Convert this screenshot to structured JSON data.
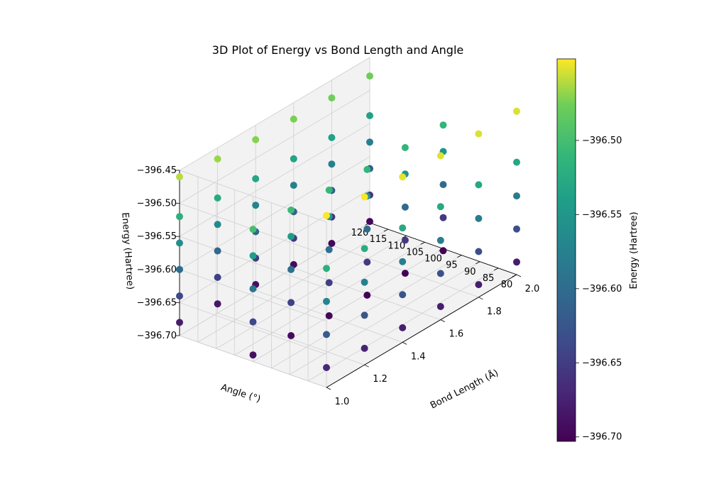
{
  "chart_data": {
    "type": "scatter",
    "projection": "3d",
    "title": "3D Plot of Energy vs Bond Length and Angle",
    "xlabel": "Bond Length (Å)",
    "ylabel": "Angle (°)",
    "zlabel": "Energy (Hartree)",
    "colorbar_label": "Energy (Hartree)",
    "colormap": "viridis",
    "xlim": [
      1.0,
      2.0
    ],
    "ylim": [
      80,
      120
    ],
    "zlim": [
      -396.7,
      -396.45
    ],
    "x_ticks": [
      "1.0",
      "1.2",
      "1.4",
      "1.6",
      "1.8",
      "2.0"
    ],
    "y_ticks": [
      "120",
      "115",
      "110",
      "105",
      "100",
      "95",
      "90",
      "85",
      "80"
    ],
    "z_ticks": [
      "−396.70",
      "−396.65",
      "−396.60",
      "−396.55",
      "−396.50",
      "−396.45"
    ],
    "colorbar_ticks": [
      "−396.70",
      "−396.65",
      "−396.60",
      "−396.55",
      "−396.50"
    ],
    "colorbar_range": [
      -396.703,
      -396.445
    ],
    "grid": true,
    "colors": {
      "viridis_low": "#440154",
      "viridis_mid": "#21918c",
      "viridis_high": "#fde725",
      "pane": "#f2f2f2",
      "grid": "#d0d0d0"
    },
    "series": [
      {
        "angle": 120,
        "bond_length": [
          1.0,
          1.2,
          1.4,
          1.6,
          1.8,
          2.0
        ],
        "energy": [
          -396.68,
          -396.686,
          -396.691,
          -396.695,
          -396.697,
          -396.698
        ]
      },
      {
        "angle": 120,
        "bond_length": [
          1.0,
          1.2,
          1.4,
          1.6,
          1.8,
          2.0
        ],
        "energy": [
          -396.64,
          -396.646,
          -396.651,
          -396.655,
          -396.657,
          -396.658
        ]
      },
      {
        "angle": 120,
        "bond_length": [
          1.0,
          1.2,
          1.4,
          1.6,
          1.8,
          2.0
        ],
        "energy": [
          -396.6,
          -396.606,
          -396.611,
          -396.615,
          -396.617,
          -396.618
        ]
      },
      {
        "angle": 120,
        "bond_length": [
          1.0,
          1.2,
          1.4,
          1.6,
          1.8,
          2.0
        ],
        "energy": [
          -396.56,
          -396.566,
          -396.571,
          -396.575,
          -396.577,
          -396.578
        ]
      },
      {
        "angle": 120,
        "bond_length": [
          1.0,
          1.2,
          1.4,
          1.6,
          1.8,
          2.0
        ],
        "energy": [
          -396.52,
          -396.526,
          -396.531,
          -396.535,
          -396.537,
          -396.538
        ]
      },
      {
        "angle": 120,
        "bond_length": [
          1.0,
          1.2,
          1.4,
          1.6,
          1.8,
          2.0
        ],
        "energy": [
          -396.46,
          -396.467,
          -396.472,
          -396.475,
          -396.477,
          -396.478
        ]
      },
      {
        "angle": 100,
        "bond_length": [
          1.0,
          1.2,
          1.4,
          1.6,
          1.8,
          2.0
        ],
        "energy": [
          -396.69,
          -396.695,
          -396.699,
          -396.702,
          -396.703,
          -396.703
        ]
      },
      {
        "angle": 100,
        "bond_length": [
          1.0,
          1.2,
          1.4,
          1.6,
          1.8,
          2.0
        ],
        "energy": [
          -396.64,
          -396.645,
          -396.649,
          -396.652,
          -396.653,
          -396.653
        ]
      },
      {
        "angle": 100,
        "bond_length": [
          1.0,
          1.2,
          1.4,
          1.6,
          1.8,
          2.0
        ],
        "energy": [
          -396.59,
          -396.595,
          -396.599,
          -396.602,
          -396.603,
          -396.603
        ]
      },
      {
        "angle": 100,
        "bond_length": [
          1.0,
          1.2,
          1.4,
          1.6,
          1.8,
          2.0
        ],
        "energy": [
          -396.54,
          -396.545,
          -396.549,
          -396.552,
          -396.553,
          -396.553
        ]
      },
      {
        "angle": 100,
        "bond_length": [
          1.0,
          1.2,
          1.4,
          1.6,
          1.8,
          2.0
        ],
        "energy": [
          -396.5,
          -396.505,
          -396.509,
          -396.512,
          -396.513,
          -396.513
        ]
      },
      {
        "angle": 80,
        "bond_length": [
          1.0,
          1.2,
          1.4,
          1.6,
          1.8,
          2.0
        ],
        "energy": [
          -396.67,
          -396.675,
          -396.678,
          -396.68,
          -396.681,
          -396.681
        ]
      },
      {
        "angle": 80,
        "bond_length": [
          1.0,
          1.2,
          1.4,
          1.6,
          1.8,
          2.0
        ],
        "energy": [
          -396.62,
          -396.625,
          -396.628,
          -396.63,
          -396.631,
          -396.631
        ]
      },
      {
        "angle": 80,
        "bond_length": [
          1.0,
          1.2,
          1.4,
          1.6,
          1.8,
          2.0
        ],
        "energy": [
          -396.57,
          -396.575,
          -396.578,
          -396.58,
          -396.581,
          -396.581
        ]
      },
      {
        "angle": 80,
        "bond_length": [
          1.0,
          1.2,
          1.4,
          1.6,
          1.8,
          2.0
        ],
        "energy": [
          -396.52,
          -396.524,
          -396.527,
          -396.529,
          -396.53,
          -396.53
        ]
      },
      {
        "angle": 80,
        "bond_length": [
          1.0,
          1.2,
          1.4,
          1.6,
          1.8,
          2.0
        ],
        "energy": [
          -396.44,
          -396.446,
          -396.45,
          -396.452,
          -396.453,
          -396.453
        ]
      }
    ]
  }
}
